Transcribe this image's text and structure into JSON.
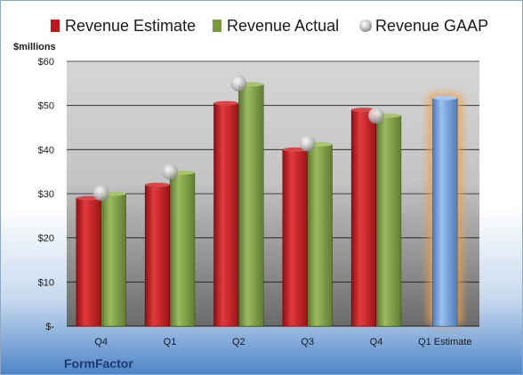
{
  "chart_data": {
    "type": "bar",
    "categories": [
      "Q4",
      "Q1",
      "Q2",
      "Q3",
      "Q4",
      "Q1 Estimate"
    ],
    "series": [
      {
        "name": "Revenue Estimate",
        "values": [
          29,
          32,
          50.5,
          40,
          49,
          null
        ],
        "color": "#c0161b"
      },
      {
        "name": "Revenue Actual",
        "values": [
          30,
          34.8,
          54.8,
          41.2,
          47.7,
          null
        ],
        "color": "#7a9a3e"
      },
      {
        "name": "Revenue GAAP",
        "type": "scatter",
        "values": [
          30.2,
          35,
          55,
          41.4,
          47.7,
          null
        ],
        "color": "#b0b0b0"
      },
      {
        "name": "",
        "values": [
          null,
          null,
          null,
          null,
          null,
          51.7
        ],
        "color": "#6b9bd8",
        "highlight": "#f5a040"
      }
    ],
    "ylabel": "$millions",
    "ylim": [
      0,
      60
    ],
    "yticks": [
      0,
      10,
      20,
      30,
      40,
      50,
      60
    ],
    "ytick_labels": [
      "$-",
      "$10",
      "$20",
      "$30",
      "$40",
      "$50",
      "$60"
    ],
    "grid": true,
    "legend_position": "top",
    "brand": "FormFactor"
  }
}
